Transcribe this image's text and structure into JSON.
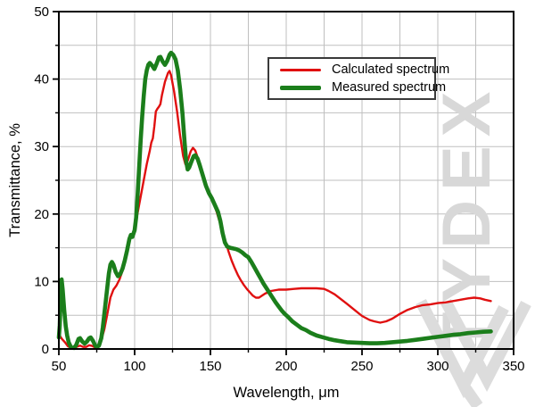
{
  "watermark": {
    "text": "TYDEX",
    "color": "#d8d8d8",
    "logo_icon": "double-chevron-logo"
  },
  "palette": {
    "calculated": "#e01010",
    "measured": "#1b7e1b",
    "grid": "#bfbfbf",
    "axis": "#000000",
    "legend_border": "#3a3a3a"
  },
  "chart_data": {
    "type": "line",
    "title": "",
    "xlabel": "Wavelength, μm",
    "ylabel": "Transmittance, %",
    "xlim": [
      50,
      350
    ],
    "ylim": [
      0,
      50
    ],
    "x_major_ticks": [
      50,
      100,
      150,
      200,
      250,
      300,
      350
    ],
    "x_minor_ticks": [
      75,
      125,
      175,
      225,
      275,
      325
    ],
    "y_major_ticks": [
      0,
      10,
      20,
      30,
      40,
      50
    ],
    "y_minor_ticks": [
      5,
      15,
      25,
      35,
      45
    ],
    "grid": "both, every 25 um (x) and 5 % (y)",
    "legend_position": "inside top-right",
    "series": [
      {
        "name": "Calculated spectrum",
        "color": "#e01010",
        "width": 2.4,
        "points": [
          [
            50,
            2.2
          ],
          [
            52,
            1.5
          ],
          [
            54,
            1.0
          ],
          [
            56,
            0.4
          ],
          [
            58,
            0.15
          ],
          [
            60,
            0.1
          ],
          [
            62,
            0.35
          ],
          [
            64,
            0.5
          ],
          [
            66,
            0.3
          ],
          [
            68,
            0.3
          ],
          [
            70,
            0.55
          ],
          [
            72,
            0.45
          ],
          [
            74,
            0.2
          ],
          [
            76,
            0.35
          ],
          [
            78,
            1.3
          ],
          [
            80,
            2.9
          ],
          [
            82,
            5.2
          ],
          [
            84,
            7.6
          ],
          [
            86,
            8.8
          ],
          [
            88,
            9.4
          ],
          [
            90,
            10.3
          ],
          [
            92,
            11.6
          ],
          [
            94,
            13.3
          ],
          [
            96,
            15.4
          ],
          [
            97,
            16.3
          ],
          [
            98,
            16.7
          ],
          [
            99,
            16.9
          ],
          [
            100,
            17.8
          ],
          [
            102,
            20.2
          ],
          [
            104,
            22.6
          ],
          [
            106,
            25.0
          ],
          [
            108,
            27.4
          ],
          [
            110,
            29.4
          ],
          [
            111,
            30.6
          ],
          [
            112,
            31.2
          ],
          [
            113,
            33.0
          ],
          [
            114,
            35.2
          ],
          [
            115,
            35.6
          ],
          [
            116,
            35.9
          ],
          [
            117,
            36.3
          ],
          [
            118,
            37.6
          ],
          [
            120,
            39.6
          ],
          [
            122,
            40.9
          ],
          [
            123,
            41.2
          ],
          [
            124,
            40.6
          ],
          [
            126,
            38.2
          ],
          [
            128,
            35.2
          ],
          [
            130,
            31.6
          ],
          [
            132,
            28.6
          ],
          [
            133.5,
            27.4
          ],
          [
            135,
            27.9
          ],
          [
            137,
            29.3
          ],
          [
            138.5,
            29.8
          ],
          [
            140,
            29.4
          ],
          [
            142,
            28.1
          ],
          [
            144,
            26.4
          ],
          [
            146,
            24.8
          ],
          [
            148,
            23.6
          ],
          [
            150,
            22.8
          ],
          [
            152,
            21.7
          ],
          [
            154,
            20.4
          ],
          [
            156,
            18.9
          ],
          [
            158,
            17.4
          ],
          [
            160,
            15.9
          ],
          [
            162,
            14.4
          ],
          [
            164,
            13.1
          ],
          [
            166,
            12.0
          ],
          [
            168,
            11.0
          ],
          [
            170,
            10.2
          ],
          [
            172,
            9.5
          ],
          [
            174,
            8.9
          ],
          [
            176,
            8.4
          ],
          [
            178,
            7.9
          ],
          [
            180,
            7.6
          ],
          [
            182,
            7.6
          ],
          [
            184,
            7.9
          ],
          [
            186,
            8.2
          ],
          [
            188,
            8.4
          ],
          [
            190,
            8.6
          ],
          [
            195,
            8.8
          ],
          [
            200,
            8.8
          ],
          [
            205,
            8.9
          ],
          [
            210,
            9.0
          ],
          [
            215,
            9.0
          ],
          [
            220,
            9.0
          ],
          [
            225,
            8.9
          ],
          [
            228,
            8.6
          ],
          [
            232,
            8.1
          ],
          [
            236,
            7.4
          ],
          [
            240,
            6.7
          ],
          [
            245,
            5.8
          ],
          [
            250,
            4.9
          ],
          [
            255,
            4.3
          ],
          [
            258,
            4.1
          ],
          [
            262,
            3.9
          ],
          [
            266,
            4.1
          ],
          [
            270,
            4.5
          ],
          [
            275,
            5.2
          ],
          [
            280,
            5.8
          ],
          [
            285,
            6.2
          ],
          [
            290,
            6.5
          ],
          [
            295,
            6.6
          ],
          [
            300,
            6.8
          ],
          [
            305,
            6.9
          ],
          [
            310,
            7.1
          ],
          [
            315,
            7.3
          ],
          [
            320,
            7.5
          ],
          [
            324,
            7.6
          ],
          [
            328,
            7.5
          ],
          [
            331,
            7.3
          ],
          [
            335,
            7.1
          ]
        ]
      },
      {
        "name": "Measured spectrum",
        "color": "#1b7e1b",
        "width": 4.6,
        "points": [
          [
            50,
            1.7
          ],
          [
            50.6,
            3.5
          ],
          [
            51.2,
            7.5
          ],
          [
            51.8,
            10.3
          ],
          [
            52.5,
            8.8
          ],
          [
            53.5,
            5.8
          ],
          [
            54.5,
            3.4
          ],
          [
            55.5,
            2.0
          ],
          [
            56.5,
            1.0
          ],
          [
            58,
            0.25
          ],
          [
            60,
            0.15
          ],
          [
            61.5,
            0.6
          ],
          [
            63,
            1.5
          ],
          [
            64,
            1.6
          ],
          [
            65.5,
            1.1
          ],
          [
            67,
            0.8
          ],
          [
            68.5,
            1.1
          ],
          [
            70,
            1.6
          ],
          [
            71,
            1.7
          ],
          [
            72.5,
            1.2
          ],
          [
            74,
            0.5
          ],
          [
            75,
            0.25
          ],
          [
            76.5,
            0.5
          ],
          [
            78,
            1.6
          ],
          [
            79,
            3.2
          ],
          [
            80,
            5.2
          ],
          [
            81,
            7.2
          ],
          [
            82,
            9.2
          ],
          [
            83,
            11.2
          ],
          [
            84,
            12.5
          ],
          [
            85,
            12.9
          ],
          [
            86,
            12.5
          ],
          [
            87.5,
            11.4
          ],
          [
            89,
            10.8
          ],
          [
            90.5,
            11.1
          ],
          [
            92,
            11.9
          ],
          [
            93.5,
            13.1
          ],
          [
            95,
            14.6
          ],
          [
            96.5,
            16.3
          ],
          [
            97.5,
            16.9
          ],
          [
            98.5,
            16.6
          ],
          [
            100,
            17.6
          ],
          [
            101,
            19.5
          ],
          [
            102,
            23.0
          ],
          [
            103,
            27.0
          ],
          [
            104,
            31.0
          ],
          [
            105,
            34.5
          ],
          [
            106,
            37.5
          ],
          [
            107,
            40.0
          ],
          [
            108,
            41.3
          ],
          [
            109,
            42.1
          ],
          [
            110,
            42.4
          ],
          [
            111.5,
            42.0
          ],
          [
            113,
            41.5
          ],
          [
            114.5,
            42.3
          ],
          [
            116,
            43.2
          ],
          [
            117,
            43.3
          ],
          [
            118.5,
            42.6
          ],
          [
            120,
            42.1
          ],
          [
            121.5,
            42.7
          ],
          [
            123,
            43.6
          ],
          [
            124,
            43.9
          ],
          [
            125.5,
            43.6
          ],
          [
            127,
            42.9
          ],
          [
            128.5,
            41.3
          ],
          [
            130,
            38.5
          ],
          [
            131.5,
            35.0
          ],
          [
            133,
            30.5
          ],
          [
            134,
            27.8
          ],
          [
            135,
            26.6
          ],
          [
            136,
            26.9
          ],
          [
            137.5,
            27.8
          ],
          [
            139,
            28.6
          ],
          [
            140,
            28.7
          ],
          [
            141.5,
            28.2
          ],
          [
            143,
            27.2
          ],
          [
            145,
            25.7
          ],
          [
            147,
            24.2
          ],
          [
            149,
            23.1
          ],
          [
            151,
            22.3
          ],
          [
            153,
            21.3
          ],
          [
            155,
            20.3
          ],
          [
            156.5,
            19.0
          ],
          [
            158,
            17.2
          ],
          [
            159.5,
            15.8
          ],
          [
            161,
            15.2
          ],
          [
            163,
            15.0
          ],
          [
            165,
            14.9
          ],
          [
            167,
            14.8
          ],
          [
            169,
            14.6
          ],
          [
            171,
            14.3
          ],
          [
            173,
            13.9
          ],
          [
            175,
            13.6
          ],
          [
            177,
            12.9
          ],
          [
            179,
            12.1
          ],
          [
            181,
            11.3
          ],
          [
            183,
            10.5
          ],
          [
            185,
            9.7
          ],
          [
            187,
            9.0
          ],
          [
            189,
            8.3
          ],
          [
            191,
            7.6
          ],
          [
            193,
            6.9
          ],
          [
            195,
            6.3
          ],
          [
            197,
            5.7
          ],
          [
            199,
            5.2
          ],
          [
            201,
            4.8
          ],
          [
            204,
            4.1
          ],
          [
            207,
            3.6
          ],
          [
            210,
            3.1
          ],
          [
            213,
            2.8
          ],
          [
            216,
            2.4
          ],
          [
            220,
            2.0
          ],
          [
            224,
            1.75
          ],
          [
            228,
            1.5
          ],
          [
            232,
            1.3
          ],
          [
            236,
            1.15
          ],
          [
            240,
            1.0
          ],
          [
            245,
            0.95
          ],
          [
            250,
            0.9
          ],
          [
            255,
            0.85
          ],
          [
            260,
            0.85
          ],
          [
            265,
            0.9
          ],
          [
            270,
            1.0
          ],
          [
            275,
            1.1
          ],
          [
            280,
            1.2
          ],
          [
            285,
            1.35
          ],
          [
            290,
            1.5
          ],
          [
            295,
            1.65
          ],
          [
            300,
            1.8
          ],
          [
            305,
            1.95
          ],
          [
            310,
            2.1
          ],
          [
            315,
            2.2
          ],
          [
            320,
            2.35
          ],
          [
            325,
            2.45
          ],
          [
            330,
            2.55
          ],
          [
            335,
            2.6
          ]
        ]
      }
    ]
  },
  "legend": {
    "items": [
      {
        "label": "Calculated spectrum"
      },
      {
        "label": "Measured spectrum"
      }
    ]
  }
}
